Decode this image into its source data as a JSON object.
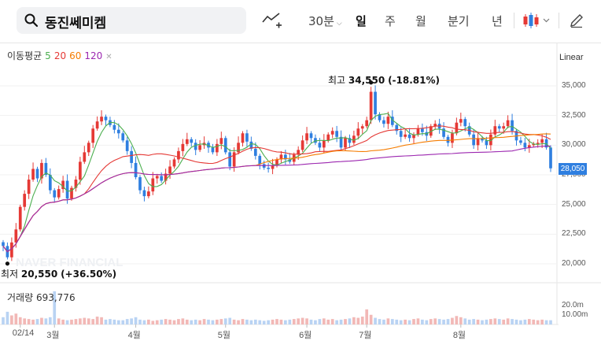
{
  "search": {
    "query": "동진쎄미켐"
  },
  "toolbar": {
    "timeframes": [
      {
        "label": "30분",
        "selected": false
      },
      {
        "label": "일",
        "selected": true
      },
      {
        "label": "주",
        "selected": false
      },
      {
        "label": "월",
        "selected": false
      },
      {
        "label": "분기",
        "selected": false
      },
      {
        "label": "년",
        "selected": false
      }
    ]
  },
  "legend": {
    "ma_label": "이동평균",
    "ma_periods": [
      {
        "period": "5",
        "color": "#4caf50"
      },
      {
        "period": "20",
        "color": "#e53935"
      },
      {
        "period": "60",
        "color": "#f57c00"
      },
      {
        "period": "120",
        "color": "#9c27b0"
      }
    ],
    "volume_label": "거래량",
    "volume_value": "693,776"
  },
  "scale": {
    "mode": "Linear"
  },
  "colors": {
    "up": "#e53935",
    "down": "#2f7fe0",
    "accent": "#2f7fe0"
  },
  "annotations": {
    "high_label": "최고",
    "high_value": "34,550",
    "high_change": "(-18.81%)",
    "low_label": "최저",
    "low_value": "20,550",
    "low_change": "(+36.50%)"
  },
  "current_price": "28,050",
  "watermark": "NAVER FINANCIAL",
  "chart_data": {
    "type": "candlestick",
    "title": "동진쎄미켐",
    "y_ticks": [
      "35,000",
      "32,500",
      "30,000",
      "27,500",
      "25,000",
      "22,500",
      "20,000"
    ],
    "y_tick_values": [
      35000,
      32500,
      30000,
      27500,
      25000,
      22500,
      20000
    ],
    "ylim": [
      19000,
      36000
    ],
    "volume_ticks": [
      "20.0m",
      "10.00m"
    ],
    "x_labels": [
      "02/14",
      "3월",
      "4월",
      "5월",
      "6월",
      "7월",
      "8월"
    ],
    "x_label_index": [
      4,
      12,
      31,
      52,
      71,
      85,
      107
    ],
    "high": {
      "value": 34550,
      "index": 86
    },
    "low": {
      "value": 20550,
      "index": 1
    },
    "closes": [
      21500,
      20550,
      21800,
      22900,
      24800,
      25900,
      27100,
      28000,
      27200,
      28500,
      27500,
      26200,
      25600,
      26300,
      27000,
      25500,
      26400,
      27100,
      28600,
      29400,
      30200,
      31400,
      32000,
      32400,
      32100,
      31700,
      31300,
      31000,
      30400,
      29500,
      28500,
      27300,
      26200,
      25700,
      26100,
      27200,
      27400,
      27000,
      27600,
      28200,
      28800,
      29500,
      30100,
      30500,
      30200,
      29600,
      30000,
      30200,
      29800,
      29400,
      30100,
      30600,
      29400,
      28200,
      29400,
      30200,
      31000,
      30300,
      29700,
      29100,
      28400,
      28100,
      28000,
      28300,
      28800,
      29200,
      28800,
      28600,
      29200,
      29600,
      30400,
      31000,
      30600,
      30200,
      29800,
      30400,
      30900,
      31200,
      30700,
      29800,
      30600,
      30200,
      30800,
      31400,
      31600,
      32100,
      34500,
      32600,
      32100,
      31800,
      32400,
      31700,
      31200,
      30700,
      30900,
      30600,
      30900,
      31400,
      31100,
      30800,
      31600,
      31800,
      31400,
      30700,
      30200,
      31000,
      31900,
      32200,
      31600,
      30900,
      30000,
      30600,
      30400,
      30000,
      30900,
      31600,
      31400,
      31600,
      32100,
      31200,
      30400,
      30200,
      29800,
      30000,
      30100,
      30200,
      30500,
      29800,
      28050
    ],
    "volumes": [
      1.2,
      2.1,
      1.5,
      1.8,
      1.2,
      1.0,
      0.9,
      0.8,
      0.9,
      1.1,
      1.0,
      1.2,
      5.5,
      1.0,
      0.8,
      0.7,
      0.8,
      0.9,
      1.0,
      1.1,
      1.0,
      0.9,
      1.3,
      1.2,
      0.8,
      0.9,
      0.8,
      0.7,
      0.7,
      0.9,
      1.0,
      1.2,
      0.8,
      0.7,
      0.8,
      0.6,
      0.7,
      0.8,
      0.9,
      0.8,
      0.7,
      0.9,
      1.0,
      0.8,
      0.7,
      0.8,
      0.7,
      0.9,
      0.8,
      0.7,
      0.8,
      0.9,
      1.0,
      1.1,
      0.8,
      0.7,
      0.9,
      0.8,
      0.7,
      0.8,
      0.7,
      0.6,
      0.7,
      0.8,
      0.9,
      0.8,
      0.7,
      0.8,
      0.9,
      1.0,
      1.1,
      1.0,
      0.8,
      0.7,
      0.9,
      1.0,
      0.8,
      0.9,
      0.7,
      0.8,
      0.9,
      1.0,
      1.2,
      1.1,
      1.3,
      2.5,
      1.6,
      1.1,
      0.9,
      0.8,
      1.0,
      0.9,
      0.8,
      0.7,
      0.8,
      0.7,
      0.9,
      1.0,
      0.8,
      0.7,
      0.9,
      1.0,
      0.9,
      0.8,
      0.9,
      1.1,
      1.4,
      1.2,
      1.0,
      0.8,
      0.9,
      0.8,
      0.7,
      0.8,
      0.9,
      1.0,
      0.9,
      0.8,
      1.0,
      0.9,
      0.8,
      0.7,
      0.8,
      0.9,
      0.8,
      0.7,
      0.8,
      0.7,
      0.7
    ]
  }
}
